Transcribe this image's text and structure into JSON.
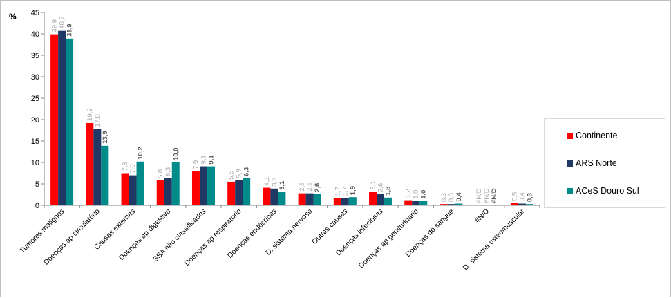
{
  "chart_data": {
    "type": "bar",
    "ylabel": "%",
    "ylim": [
      0,
      45
    ],
    "yticks": [
      "0",
      "5",
      "10",
      "15",
      "20",
      "25",
      "30",
      "35",
      "40",
      "45"
    ],
    "grid": false,
    "legend_position": "right",
    "categories": [
      "Tumores malignos",
      "Doenças ap circulatório",
      "Causas externas",
      "Doenças ap digestivo",
      "SSA não classificados",
      "Doenças ap respiratório",
      "Doenças endócrinas",
      "D. sistema nervoso",
      "Outras causas",
      "Doenças infeciosas",
      "Doenças ap geniturinário",
      "Doenças do sangue",
      "#N/D",
      "D. sistema osteomuscular"
    ],
    "series": [
      {
        "name": "Continente",
        "color": "#ff0000",
        "values": [
          39.9,
          19.2,
          7.5,
          5.8,
          7.9,
          5.5,
          4.1,
          2.8,
          1.7,
          3.1,
          1.2,
          0.3,
          0,
          0.5
        ],
        "labels": [
          "39,9",
          "19,2",
          "7,5",
          "5,8",
          "7,9",
          "5,5",
          "4,1",
          "2,8",
          "1,7",
          "3,1",
          "1,2",
          "0,3",
          "#N/D",
          "0,5"
        ]
      },
      {
        "name": "ARS Norte",
        "color": "#1f3864",
        "values": [
          40.7,
          17.8,
          7.0,
          6.3,
          9.1,
          5.9,
          3.9,
          2.8,
          1.7,
          2.6,
          1.0,
          0.3,
          0,
          0.4
        ],
        "labels": [
          "40,7",
          "17,8",
          "7,0",
          "6,3",
          "9,1",
          "5,9",
          "3,9",
          "2,8",
          "1,7",
          "2,6",
          "1,0",
          "0,3",
          "#N/D",
          "0,4"
        ]
      },
      {
        "name": "ACeS Douro Sul",
        "color": "#008b8b",
        "values": [
          38.9,
          13.9,
          10.2,
          10.0,
          9.1,
          6.3,
          3.1,
          2.6,
          1.9,
          1.8,
          1.0,
          0.4,
          0,
          0.3
        ],
        "labels": [
          "38,9",
          "13,9",
          "10,2",
          "10,0",
          "9,1",
          "6,3",
          "3,1",
          "2,6",
          "1,9",
          "1,8",
          "1,0",
          "0,4",
          "#N/D",
          "0,3"
        ]
      }
    ]
  }
}
